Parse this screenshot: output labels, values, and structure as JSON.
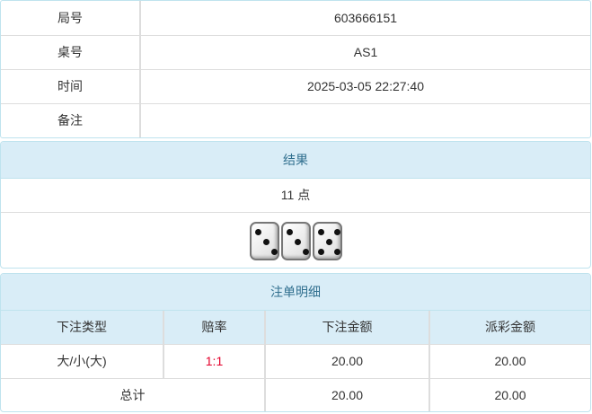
{
  "info": [
    {
      "label": "局号",
      "value": "603666151"
    },
    {
      "label": "桌号",
      "value": "AS1"
    },
    {
      "label": "时间",
      "value": "2025-03-05 22:27:40"
    },
    {
      "label": "备注",
      "value": ""
    }
  ],
  "result": {
    "title": "结果",
    "points": "11 点",
    "dice": [
      3,
      3,
      5
    ]
  },
  "bets": {
    "title": "注单明细",
    "columns": [
      "下注类型",
      "赔率",
      "下注金额",
      "派彩金额"
    ],
    "rows": [
      {
        "type": "大/小(大)",
        "odds": "1:1",
        "amount": "20.00",
        "payout": "20.00"
      }
    ],
    "total": {
      "label": "总计",
      "amount": "20.00",
      "payout": "20.00"
    },
    "odds_color": "#e4002b"
  }
}
